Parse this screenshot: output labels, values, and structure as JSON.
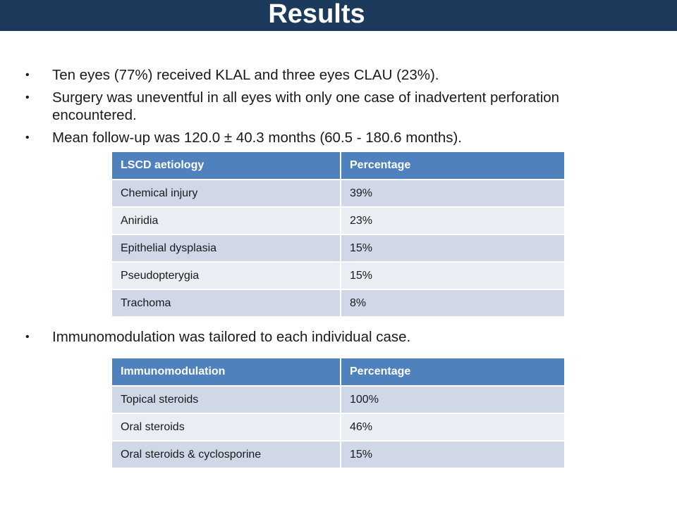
{
  "slide": {
    "title": "Results",
    "bullets_top": [
      "Ten eyes (77%) received KLAL and three eyes CLAU (23%).",
      "Surgery was uneventful in all eyes with only one case of inadvertent perforation encountered.",
      "Mean follow-up was 120.0 ± 40.3 months (60.5 - 180.6 months)."
    ],
    "bullets_bottom": [
      "Immunomodulation was tailored to each individual case."
    ],
    "bullet_glyph": "•"
  },
  "table_aetiology": {
    "headers": [
      "LSCD aetiology",
      "Percentage"
    ],
    "rows": [
      [
        "Chemical injury",
        "39%"
      ],
      [
        "Aniridia",
        "23%"
      ],
      [
        "Epithelial dysplasia",
        "15%"
      ],
      [
        "Pseudopterygia",
        "15%"
      ],
      [
        "Trachoma",
        "8%"
      ]
    ]
  },
  "table_immunomodulation": {
    "headers": [
      "Immunomodulation",
      "Percentage"
    ],
    "rows": [
      [
        "Topical steroids",
        "100%"
      ],
      [
        "Oral steroids",
        "46%"
      ],
      [
        "Oral steroids & cyclosporine",
        "15%"
      ]
    ]
  },
  "colors": {
    "title_bar": "#1b3a5c",
    "table_header": "#4f81bd",
    "row_band_1": "#d0d8e8",
    "row_band_2": "#e9edf4"
  }
}
